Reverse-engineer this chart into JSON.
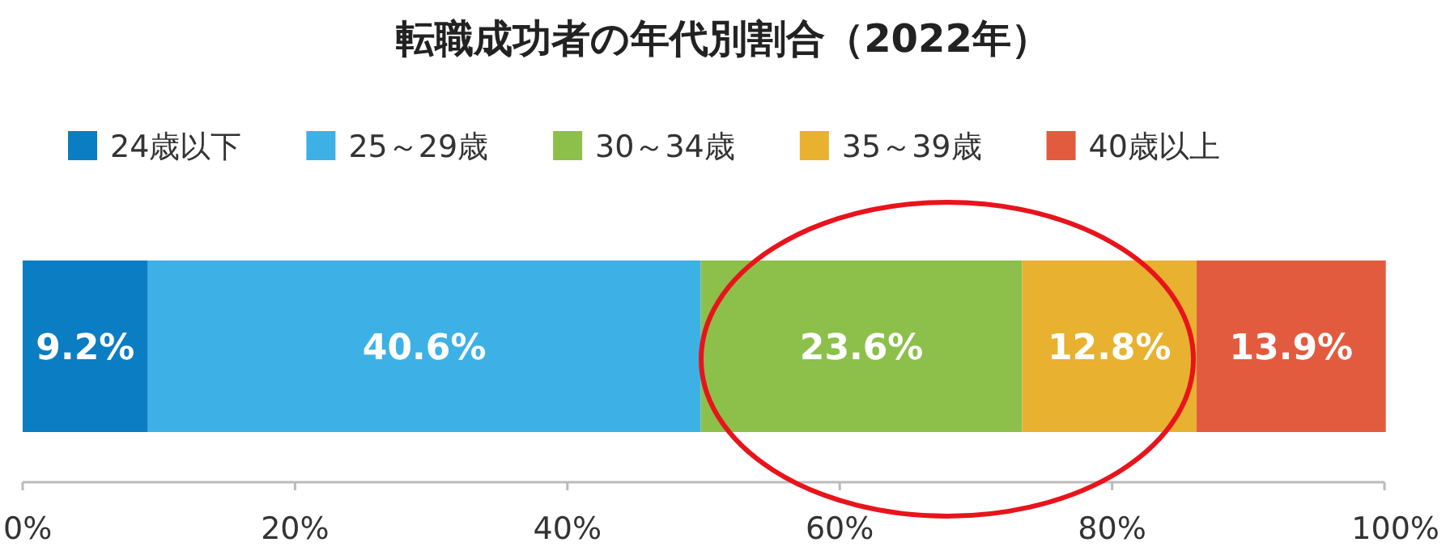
{
  "chart_data": {
    "type": "bar",
    "title": "転職成功者の年代別割合（2022年）",
    "orientation": "horizontal",
    "stacked": true,
    "legend": "top",
    "categories": [
      null
    ],
    "xlim": [
      0,
      100
    ],
    "xticks": [
      {
        "value": 0,
        "label": "0%"
      },
      {
        "value": 20,
        "label": "20%"
      },
      {
        "value": 40,
        "label": "40%"
      },
      {
        "value": 60,
        "label": "60%"
      },
      {
        "value": 80,
        "label": "80%"
      },
      {
        "value": 100,
        "label": "100%"
      }
    ],
    "series": [
      {
        "name": "24歳以下",
        "color": "#0b7dc3",
        "values": [
          9.2
        ],
        "value_labels": [
          "9.2%"
        ]
      },
      {
        "name": "25～29歳",
        "color": "#3db1e6",
        "values": [
          40.6
        ],
        "value_labels": [
          "40.6%"
        ]
      },
      {
        "name": "30～34歳",
        "color": "#8cc04b",
        "values": [
          23.6
        ],
        "value_labels": [
          "23.6%"
        ]
      },
      {
        "name": "35～39歳",
        "color": "#e8b12f",
        "values": [
          12.8
        ],
        "value_labels": [
          "12.8%"
        ]
      },
      {
        "name": "40歳以上",
        "color": "#e35b3f",
        "values": [
          13.9
        ],
        "value_labels": [
          "13.9%"
        ]
      }
    ]
  }
}
